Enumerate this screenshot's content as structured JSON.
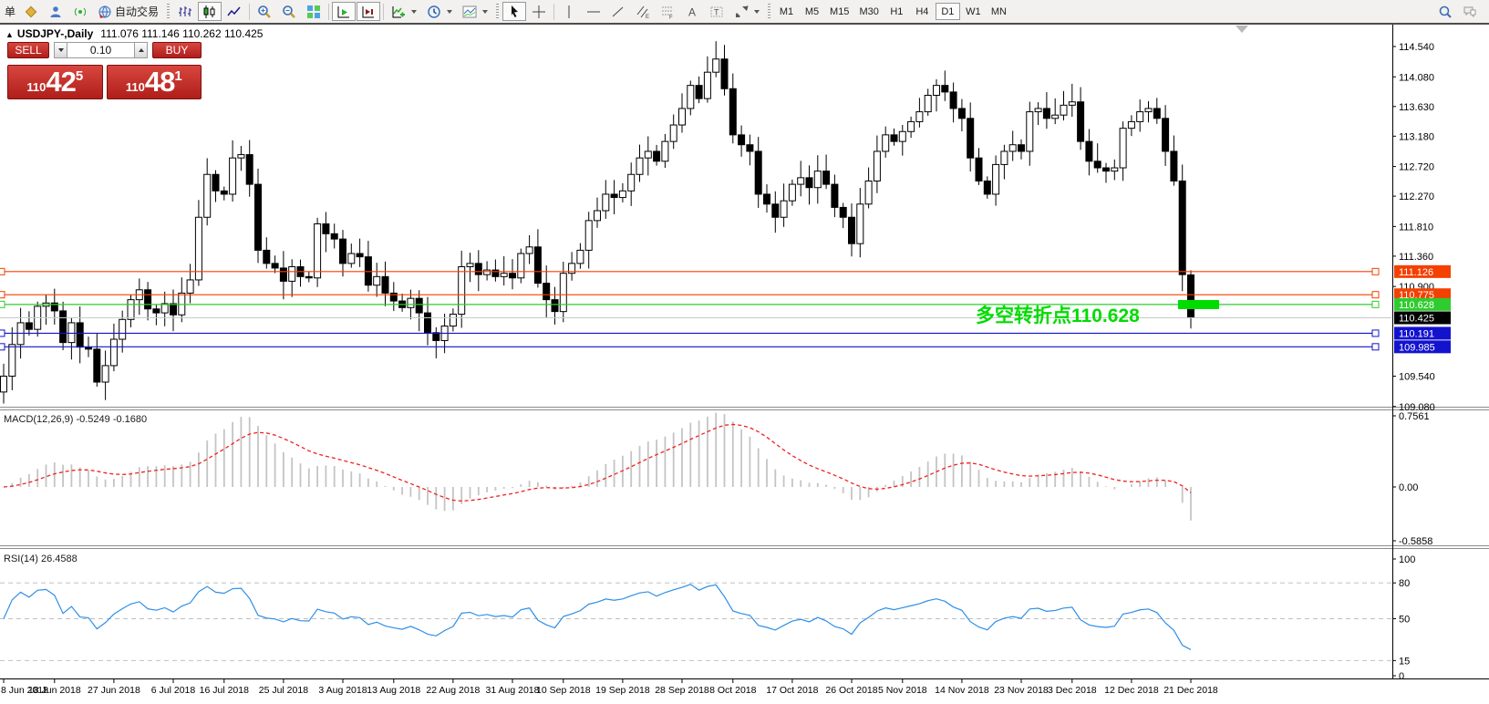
{
  "toolbar": {
    "new_order_label": "单",
    "autotrading_label": "自动交易",
    "timeframes": [
      "M1",
      "M5",
      "M15",
      "M30",
      "H1",
      "H4",
      "D1",
      "W1",
      "MN"
    ],
    "active_timeframe": "D1"
  },
  "chart": {
    "title_marker": "▲",
    "title_symbol": "USDJPY-,Daily",
    "title_ohlc": "111.076 111.146 110.262 110.425",
    "macd_label": "MACD(12,26,9) -0.5249 -0.1680",
    "rsi_label": "RSI(14) 26.4588",
    "annotation_text": "多空转折点110.628",
    "annotation_color": "#00DC00"
  },
  "trade_panel": {
    "sell_label": "SELL",
    "buy_label": "BUY",
    "lot_value": "0.10",
    "sell_price": {
      "prefix": "110",
      "big": "42",
      "sup": "5"
    },
    "buy_price": {
      "prefix": "110",
      "big": "48",
      "sup": "1"
    }
  },
  "chart_data": {
    "type": "candlestick",
    "symbol": "USDJPY",
    "timeframe": "Daily",
    "x_labels": [
      {
        "i": 0,
        "t": "8 Jun 2018"
      },
      {
        "i": 6,
        "t": "18 Jun 2018"
      },
      {
        "i": 13,
        "t": "27 Jun 2018"
      },
      {
        "i": 20,
        "t": "6 Jul 2018"
      },
      {
        "i": 26,
        "t": "16 Jul 2018"
      },
      {
        "i": 33,
        "t": "25 Jul 2018"
      },
      {
        "i": 40,
        "t": "3 Aug 2018"
      },
      {
        "i": 46,
        "t": "13 Aug 2018"
      },
      {
        "i": 53,
        "t": "22 Aug 2018"
      },
      {
        "i": 60,
        "t": "31 Aug 2018"
      },
      {
        "i": 66,
        "t": "10 Sep 2018"
      },
      {
        "i": 73,
        "t": "19 Sep 2018"
      },
      {
        "i": 80,
        "t": "28 Sep 2018"
      },
      {
        "i": 86,
        "t": "8 Oct 2018"
      },
      {
        "i": 93,
        "t": "17 Oct 2018"
      },
      {
        "i": 100,
        "t": "26 Oct 2018"
      },
      {
        "i": 106,
        "t": "5 Nov 2018"
      },
      {
        "i": 113,
        "t": "14 Nov 2018"
      },
      {
        "i": 120,
        "t": "23 Nov 2018"
      },
      {
        "i": 126,
        "t": "3 Dec 2018"
      },
      {
        "i": 133,
        "t": "12 Dec 2018"
      },
      {
        "i": 140,
        "t": "21 Dec 2018"
      }
    ],
    "closes": [
      109.54,
      110.02,
      110.35,
      110.25,
      110.6,
      110.65,
      110.53,
      110.05,
      110.35,
      109.98,
      109.95,
      109.45,
      109.7,
      110.1,
      110.4,
      110.7,
      110.85,
      110.56,
      110.5,
      110.64,
      110.47,
      110.8,
      111.0,
      111.95,
      112.6,
      112.35,
      112.3,
      112.85,
      112.9,
      112.45,
      111.45,
      111.25,
      111.18,
      110.98,
      111.2,
      111.05,
      111.03,
      111.85,
      111.7,
      111.62,
      111.25,
      111.4,
      111.35,
      110.92,
      111.05,
      110.8,
      110.68,
      110.58,
      110.72,
      110.5,
      110.2,
      110.08,
      110.3,
      110.48,
      111.2,
      111.25,
      111.08,
      111.15,
      111.05,
      111.1,
      111.03,
      111.4,
      111.5,
      110.95,
      110.7,
      110.52,
      111.1,
      111.25,
      111.45,
      111.9,
      112.05,
      112.3,
      112.25,
      112.35,
      112.6,
      112.85,
      112.95,
      112.8,
      113.1,
      113.35,
      113.6,
      113.95,
      113.75,
      114.15,
      114.35,
      113.9,
      113.2,
      113.05,
      112.95,
      112.3,
      112.15,
      111.95,
      112.2,
      112.45,
      112.55,
      112.4,
      112.65,
      112.45,
      112.1,
      111.95,
      111.55,
      112.15,
      112.5,
      112.95,
      113.2,
      113.1,
      113.25,
      113.4,
      113.55,
      113.8,
      113.95,
      113.85,
      113.6,
      113.45,
      112.85,
      112.5,
      112.3,
      112.75,
      112.95,
      113.05,
      112.95,
      113.55,
      113.6,
      113.45,
      113.5,
      113.65,
      113.7,
      113.1,
      112.8,
      112.7,
      112.65,
      112.7,
      113.3,
      113.4,
      113.55,
      113.6,
      113.45,
      112.95,
      112.5,
      111.08,
      110.425
    ],
    "overrides": {
      "84": {
        "h": 114.62
      },
      "140": {
        "o": 111.076,
        "h": 111.146,
        "l": 110.262,
        "c": 110.425
      }
    },
    "price_axis_ticks": [
      "114.540",
      "114.080",
      "113.630",
      "113.180",
      "112.720",
      "112.270",
      "111.810",
      "111.360",
      "110.900",
      "109.540",
      "109.080"
    ],
    "level_lines": [
      {
        "label": "111.126",
        "price": 111.126,
        "color": "#F44000"
      },
      {
        "label": "110.775",
        "price": 110.775,
        "color": "#F44000"
      },
      {
        "label": "110.628",
        "price": 110.628,
        "color": "#2ECC2E"
      },
      {
        "label": "110.191",
        "price": 110.191,
        "color": "#1313CE"
      },
      {
        "label": "109.985",
        "price": 109.985,
        "color": "#1313CE"
      }
    ],
    "current_price": {
      "label": "110.425",
      "price": 110.425,
      "line_color": "#C9C9C9",
      "tag_bg": "#000000"
    },
    "macd": {
      "params": [
        12,
        26,
        9
      ],
      "value": -0.5249,
      "signal_value": -0.168,
      "axis_ticks": [
        {
          "label": "0.7561",
          "v": 0.7561
        },
        {
          "label": "0.00",
          "v": 0
        },
        {
          "label": "-0.5858",
          "v": -0.5858
        }
      ],
      "bar_color": "#C4C4C4",
      "signal_color": "#F22020"
    },
    "rsi": {
      "period": 14,
      "value": 26.4588,
      "axis_ticks": [
        {
          "label": "100",
          "v": 100
        },
        {
          "label": "80",
          "v": 80
        },
        {
          "label": "50",
          "v": 50
        },
        {
          "label": "15",
          "v": 15
        },
        {
          "label": "0",
          "v": 0
        }
      ],
      "levels": [
        80,
        50,
        15
      ],
      "line_color": "#2E8FE8",
      "level_color": "#C0C0C0"
    }
  }
}
